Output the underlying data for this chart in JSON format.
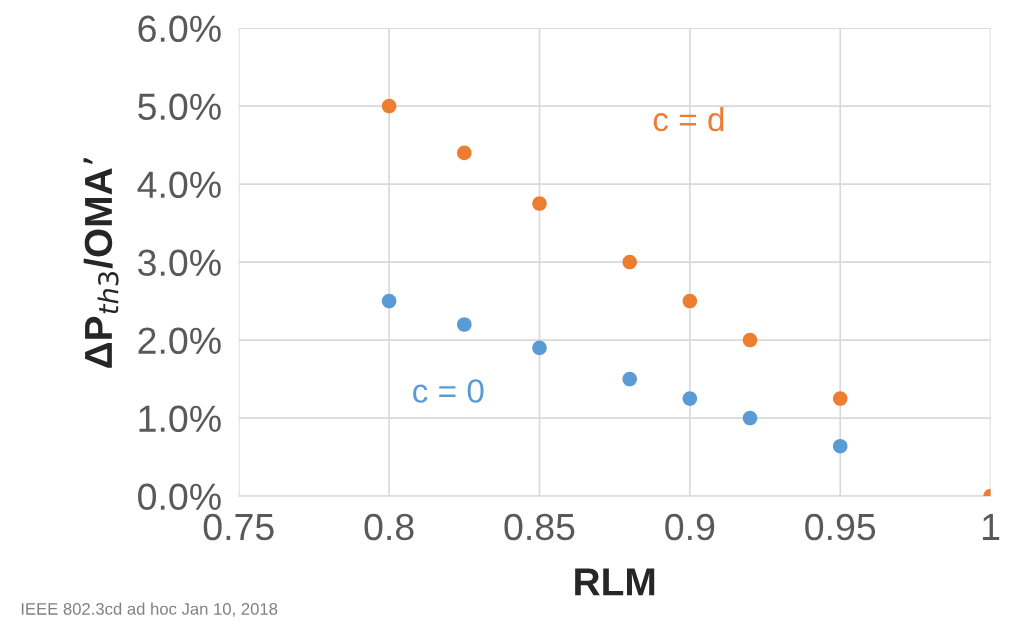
{
  "chart_data": {
    "type": "scatter",
    "xlabel": "RLM",
    "ylabel": "ΔP$_{th3}$/OMA’",
    "series": [
      {
        "name": "c = d",
        "color": "#ed7d31",
        "x": [
          0.8,
          0.825,
          0.85,
          0.88,
          0.9,
          0.92,
          0.95,
          1.0
        ],
        "values": [
          5.0,
          4.4,
          3.75,
          3.0,
          2.5,
          2.0,
          1.25,
          0.0
        ]
      },
      {
        "name": "c = 0",
        "color": "#5b9bd5",
        "x": [
          0.8,
          0.825,
          0.85,
          0.88,
          0.9,
          0.92,
          0.95
        ],
        "values": [
          2.5,
          2.2,
          1.9,
          1.5,
          1.25,
          1.0,
          0.64
        ]
      }
    ],
    "xlim": [
      0.75,
      1
    ],
    "xticks": [
      0.75,
      0.8,
      0.85,
      0.9,
      0.95,
      1
    ],
    "ylim": [
      0,
      6
    ],
    "yticks": [
      {
        "value": 0,
        "label": "0.0%"
      },
      {
        "value": 1,
        "label": "1.0%"
      },
      {
        "value": 2,
        "label": "2.0%"
      },
      {
        "value": 3,
        "label": "3.0%"
      },
      {
        "value": 4,
        "label": "4.0%"
      },
      {
        "value": 5,
        "label": "5.0%"
      },
      {
        "value": 6,
        "label": "6.0%"
      }
    ],
    "grid": true,
    "marker": "circle",
    "legend": false,
    "annotations": [
      "IEEE 802.3cd ad hoc Jan 10, 2018"
    ]
  }
}
